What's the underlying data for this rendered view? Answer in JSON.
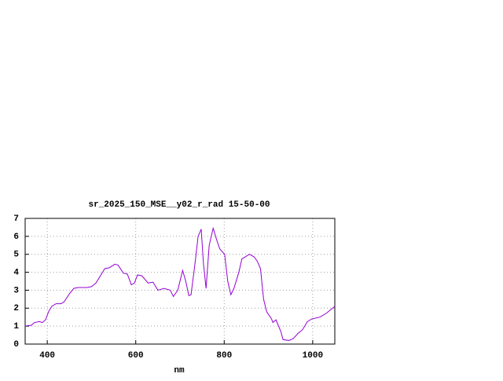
{
  "chart_data": {
    "type": "line",
    "title": "sr_2025_150_MSE__y02_r_rad 15-50-00",
    "xlabel": "nm",
    "x": [
      350,
      364,
      371,
      382,
      389,
      396,
      403,
      410,
      420,
      431,
      438,
      450,
      460,
      470,
      480,
      490,
      500,
      510,
      520,
      530,
      540,
      553,
      560,
      572,
      581,
      590,
      597,
      604,
      614,
      628,
      639,
      650,
      664,
      678,
      685,
      695,
      706,
      713,
      720,
      725,
      734,
      741,
      748,
      753,
      759,
      766,
      775,
      783,
      790,
      801,
      808,
      815,
      822,
      833,
      840,
      847,
      857,
      868,
      875,
      882,
      889,
      896,
      907,
      910,
      917,
      928,
      933,
      946,
      956,
      967,
      977,
      988,
      998,
      1016,
      1030,
      1050
    ],
    "values": [
      1.0,
      1.05,
      1.2,
      1.25,
      1.2,
      1.35,
      1.8,
      2.1,
      2.25,
      2.25,
      2.35,
      2.8,
      3.1,
      3.15,
      3.15,
      3.15,
      3.2,
      3.4,
      3.8,
      4.2,
      4.25,
      4.45,
      4.4,
      3.95,
      3.9,
      3.3,
      3.4,
      3.85,
      3.8,
      3.4,
      3.45,
      3.0,
      3.1,
      3.0,
      2.65,
      3.0,
      4.1,
      3.5,
      2.7,
      2.75,
      4.5,
      6.0,
      6.4,
      4.5,
      3.1,
      5.5,
      6.45,
      5.8,
      5.3,
      5.0,
      3.5,
      2.75,
      3.1,
      4.0,
      4.75,
      4.85,
      5.0,
      4.85,
      4.6,
      4.2,
      2.5,
      1.8,
      1.4,
      1.2,
      1.35,
      0.7,
      0.25,
      0.2,
      0.3,
      0.6,
      0.8,
      1.25,
      1.4,
      1.5,
      1.7,
      2.1
    ],
    "color": "#9400d3",
    "xlim": [
      350,
      1050
    ],
    "ylim": [
      0,
      7
    ],
    "xticks": [
      400,
      600,
      800,
      1000
    ],
    "yticks": [
      0,
      1,
      2,
      3,
      4,
      5,
      6,
      7
    ],
    "grid": true
  }
}
